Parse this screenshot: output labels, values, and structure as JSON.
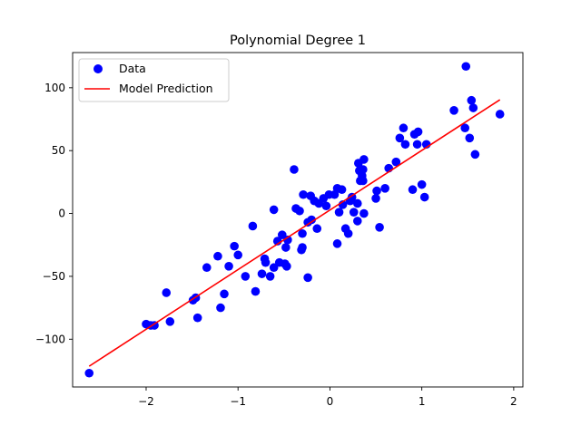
{
  "chart_data": {
    "type": "scatter",
    "title": "Polynomial Degree 1",
    "xlabel": "",
    "ylabel": "",
    "xlim": [
      -2.8,
      2.1
    ],
    "ylim": [
      -138,
      128
    ],
    "xticks": [
      -2,
      -1,
      0,
      1,
      2
    ],
    "xtick_labels": [
      "−2",
      "−1",
      "0",
      "1",
      "2"
    ],
    "yticks": [
      -100,
      -50,
      0,
      50,
      100
    ],
    "ytick_labels": [
      "−100",
      "−50",
      "0",
      "50",
      "100"
    ],
    "grid": false,
    "legend_position": "top-left",
    "colors": {
      "data": "#0000ff",
      "model": "#ff0000"
    },
    "series": [
      {
        "name": "Data",
        "kind": "scatter",
        "points": [
          [
            -2.62,
            -127
          ],
          [
            -2.0,
            -88
          ],
          [
            -1.95,
            -89
          ],
          [
            -1.91,
            -89
          ],
          [
            -1.78,
            -63
          ],
          [
            -1.74,
            -86
          ],
          [
            -1.49,
            -69
          ],
          [
            -1.46,
            -67
          ],
          [
            -1.44,
            -83
          ],
          [
            -1.34,
            -43
          ],
          [
            -1.22,
            -34
          ],
          [
            -1.19,
            -75
          ],
          [
            -1.15,
            -64
          ],
          [
            -1.1,
            -42
          ],
          [
            -1.04,
            -26
          ],
          [
            -1.0,
            -33
          ],
          [
            -0.92,
            -50
          ],
          [
            -0.84,
            -10
          ],
          [
            -0.81,
            -62
          ],
          [
            -0.74,
            -48
          ],
          [
            -0.71,
            -36
          ],
          [
            -0.7,
            -39
          ],
          [
            -0.65,
            -50
          ],
          [
            -0.61,
            -43
          ],
          [
            -0.61,
            3
          ],
          [
            -0.57,
            -22
          ],
          [
            -0.55,
            -39
          ],
          [
            -0.52,
            -17
          ],
          [
            -0.49,
            -40
          ],
          [
            -0.48,
            -27
          ],
          [
            -0.47,
            -42
          ],
          [
            -0.46,
            -21
          ],
          [
            -0.39,
            35
          ],
          [
            -0.37,
            4
          ],
          [
            -0.33,
            2
          ],
          [
            -0.31,
            -29
          ],
          [
            -0.3,
            -27
          ],
          [
            -0.3,
            -16
          ],
          [
            -0.29,
            15
          ],
          [
            -0.24,
            -51
          ],
          [
            -0.24,
            -7
          ],
          [
            -0.21,
            14
          ],
          [
            -0.2,
            -5
          ],
          [
            -0.17,
            10
          ],
          [
            -0.14,
            -12
          ],
          [
            -0.12,
            8
          ],
          [
            -0.07,
            12
          ],
          [
            -0.04,
            6
          ],
          [
            -0.01,
            15
          ],
          [
            0.05,
            15
          ],
          [
            0.08,
            20
          ],
          [
            0.08,
            -24
          ],
          [
            0.1,
            1
          ],
          [
            0.13,
            19
          ],
          [
            0.14,
            7
          ],
          [
            0.17,
            -12
          ],
          [
            0.2,
            -16
          ],
          [
            0.22,
            10
          ],
          [
            0.24,
            13
          ],
          [
            0.26,
            1
          ],
          [
            0.3,
            -6
          ],
          [
            0.3,
            8
          ],
          [
            0.31,
            40
          ],
          [
            0.32,
            34
          ],
          [
            0.33,
            26
          ],
          [
            0.35,
            30
          ],
          [
            0.36,
            26
          ],
          [
            0.36,
            35
          ],
          [
            0.37,
            0
          ],
          [
            0.37,
            43
          ],
          [
            0.5,
            12
          ],
          [
            0.51,
            18
          ],
          [
            0.54,
            -11
          ],
          [
            0.6,
            20
          ],
          [
            0.64,
            36
          ],
          [
            0.72,
            41
          ],
          [
            0.76,
            60
          ],
          [
            0.8,
            68
          ],
          [
            0.82,
            55
          ],
          [
            0.9,
            19
          ],
          [
            0.92,
            63
          ],
          [
            0.95,
            55
          ],
          [
            0.96,
            65
          ],
          [
            1.0,
            23
          ],
          [
            1.03,
            13
          ],
          [
            1.05,
            55
          ],
          [
            1.35,
            82
          ],
          [
            1.47,
            68
          ],
          [
            1.48,
            117
          ],
          [
            1.52,
            60
          ],
          [
            1.54,
            90
          ],
          [
            1.56,
            84
          ],
          [
            1.58,
            47
          ],
          [
            1.85,
            79
          ]
        ]
      },
      {
        "name": "Model Prediction",
        "kind": "line",
        "x": [
          -2.62,
          1.85
        ],
        "y": [
          -121.5,
          90.5
        ]
      }
    ]
  }
}
